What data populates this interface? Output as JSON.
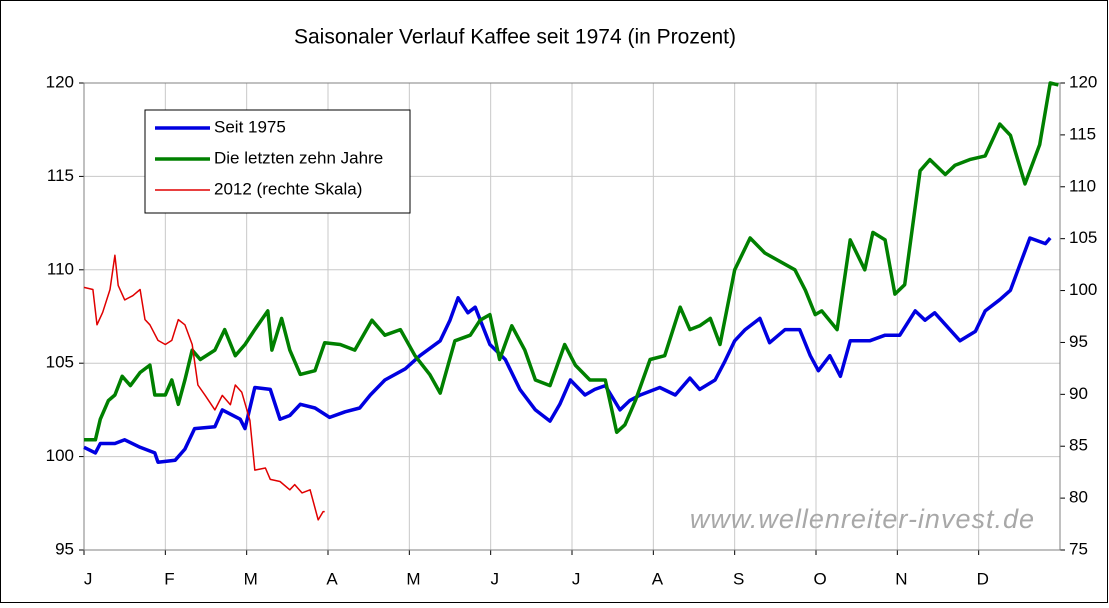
{
  "chart_data": {
    "type": "line",
    "title": "Saisonaler Verlauf Kaffee seit 1974 (in Prozent)",
    "watermark": "www.wellenreiter-invest.de",
    "xlim": [
      0,
      12
    ],
    "xticks": [
      {
        "value": 0,
        "label": "J"
      },
      {
        "value": 1,
        "label": "F"
      },
      {
        "value": 2,
        "label": "M"
      },
      {
        "value": 3,
        "label": "A"
      },
      {
        "value": 4,
        "label": "M"
      },
      {
        "value": 5,
        "label": "J"
      },
      {
        "value": 6,
        "label": "J"
      },
      {
        "value": 7,
        "label": "A"
      },
      {
        "value": 8,
        "label": "S"
      },
      {
        "value": 9,
        "label": "O"
      },
      {
        "value": 10,
        "label": "N"
      },
      {
        "value": 11,
        "label": "D"
      }
    ],
    "ylim": [
      95,
      120
    ],
    "yticks": [
      95,
      100,
      105,
      110,
      115,
      120
    ],
    "y2lim": [
      75,
      120
    ],
    "y2ticks": [
      75,
      80,
      85,
      90,
      95,
      100,
      105,
      110,
      115,
      120
    ],
    "grid": true,
    "legend": "upper left",
    "series": [
      {
        "name": "Seit 1975",
        "color": "#0000e0",
        "x": [
          0,
          0.14,
          0.2,
          0.38,
          0.5,
          0.69,
          0.87,
          0.91,
          1.12,
          1.24,
          1.36,
          1.61,
          1.7,
          1.92,
          1.98,
          2.1,
          2.29,
          2.41,
          2.53,
          2.66,
          2.84,
          3.02,
          3.21,
          3.39,
          3.52,
          3.7,
          3.95,
          4.13,
          4.38,
          4.5,
          4.6,
          4.72,
          4.81,
          4.99,
          5.18,
          5.36,
          5.55,
          5.73,
          5.85,
          5.98,
          6.16,
          6.28,
          6.41,
          6.59,
          6.71,
          6.84,
          7.08,
          7.27,
          7.45,
          7.57,
          7.76,
          7.88,
          8.0,
          8.13,
          8.31,
          8.43,
          8.62,
          8.8,
          8.93,
          9.03,
          9.17,
          9.3,
          9.42,
          9.66,
          9.85,
          10.03,
          10.22,
          10.34,
          10.46,
          10.77,
          10.96,
          11.08,
          11.26,
          11.39,
          11.51,
          11.63,
          11.82,
          11.88
        ],
        "values": [
          100.5,
          100.2,
          100.7,
          100.7,
          100.9,
          100.5,
          100.2,
          99.7,
          99.8,
          100.4,
          101.5,
          101.6,
          102.5,
          102.0,
          101.5,
          103.7,
          103.6,
          102.0,
          102.2,
          102.8,
          102.6,
          102.1,
          102.4,
          102.6,
          103.3,
          104.1,
          104.7,
          105.4,
          106.2,
          107.3,
          108.5,
          107.7,
          108.0,
          106.0,
          105.2,
          103.6,
          102.5,
          101.9,
          102.8,
          104.1,
          103.3,
          103.6,
          103.8,
          102.5,
          103.0,
          103.3,
          103.7,
          103.3,
          104.2,
          103.6,
          104.1,
          105.1,
          106.2,
          106.8,
          107.4,
          106.1,
          106.8,
          106.8,
          105.4,
          104.6,
          105.4,
          104.3,
          106.2,
          106.2,
          106.5,
          106.5,
          107.8,
          107.3,
          107.7,
          106.2,
          106.7,
          107.8,
          108.4,
          108.9,
          110.3,
          111.7,
          111.4,
          111.7
        ]
      },
      {
        "name": "Die letzten zehn Jahre",
        "color": "#008000",
        "x": [
          0,
          0.14,
          0.2,
          0.3,
          0.38,
          0.47,
          0.57,
          0.69,
          0.81,
          0.87,
          1.0,
          1.08,
          1.16,
          1.24,
          1.33,
          1.43,
          1.61,
          1.73,
          1.86,
          1.98,
          2.1,
          2.26,
          2.31,
          2.43,
          2.53,
          2.66,
          2.84,
          2.96,
          3.15,
          3.33,
          3.54,
          3.7,
          3.89,
          4.07,
          4.25,
          4.38,
          4.56,
          4.75,
          4.87,
          4.99,
          5.11,
          5.26,
          5.42,
          5.55,
          5.73,
          5.91,
          6.04,
          6.22,
          6.41,
          6.55,
          6.65,
          6.78,
          6.96,
          7.14,
          7.33,
          7.45,
          7.57,
          7.7,
          7.82,
          8.0,
          8.19,
          8.37,
          8.74,
          8.87,
          8.99,
          9.07,
          9.26,
          9.42,
          9.6,
          9.7,
          9.85,
          9.97,
          10.09,
          10.28,
          10.4,
          10.59,
          10.71,
          10.89,
          11.08,
          11.26,
          11.39,
          11.57,
          11.75,
          11.88,
          11.98
        ],
        "values": [
          100.9,
          100.9,
          102.0,
          103.0,
          103.3,
          104.3,
          103.8,
          104.5,
          104.9,
          103.3,
          103.3,
          104.1,
          102.8,
          104.1,
          105.7,
          105.2,
          105.7,
          106.8,
          105.4,
          106.0,
          106.8,
          107.8,
          105.7,
          107.4,
          105.7,
          104.4,
          104.6,
          106.1,
          106.0,
          105.7,
          107.3,
          106.5,
          106.8,
          105.4,
          104.4,
          103.4,
          106.2,
          106.5,
          107.3,
          107.6,
          105.2,
          107.0,
          105.7,
          104.1,
          103.8,
          106.0,
          104.9,
          104.1,
          104.1,
          101.3,
          101.7,
          103.0,
          105.2,
          105.4,
          108.0,
          106.8,
          107.0,
          107.4,
          106.0,
          110.0,
          111.7,
          110.9,
          110.0,
          108.9,
          107.6,
          107.8,
          106.8,
          111.6,
          110.0,
          112.0,
          111.6,
          108.7,
          109.2,
          115.3,
          115.9,
          115.1,
          115.6,
          115.9,
          116.1,
          117.8,
          117.2,
          114.6,
          116.7,
          120.0,
          119.9
        ]
      },
      {
        "name": "2012 (rechte Skala)",
        "color": "#e00000",
        "axis": "y2",
        "x": [
          0,
          0.11,
          0.16,
          0.23,
          0.32,
          0.38,
          0.42,
          0.5,
          0.6,
          0.69,
          0.75,
          0.81,
          0.91,
          1.0,
          1.08,
          1.16,
          1.24,
          1.33,
          1.4,
          1.49,
          1.61,
          1.7,
          1.8,
          1.86,
          1.94,
          2.04,
          2.1,
          2.23,
          2.29,
          2.41,
          2.53,
          2.59,
          2.68,
          2.78,
          2.88,
          2.94,
          2.96
        ],
        "values": [
          100.3,
          100.1,
          96.7,
          97.9,
          100.1,
          103.4,
          100.5,
          99.1,
          99.5,
          100.1,
          97.2,
          96.7,
          95.2,
          94.8,
          95.2,
          97.2,
          96.7,
          94.8,
          90.9,
          89.9,
          88.5,
          89.9,
          89.0,
          90.9,
          90.2,
          87.5,
          82.7,
          82.9,
          81.8,
          81.6,
          80.8,
          81.3,
          80.5,
          80.8,
          77.9,
          78.7,
          78.7
        ]
      }
    ]
  }
}
